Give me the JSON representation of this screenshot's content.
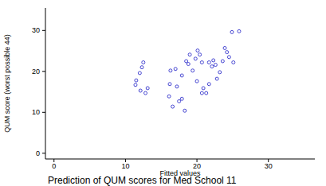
{
  "chart_data": {
    "type": "scatter",
    "title": "Prediction of QUM scores for Med School 11",
    "x_label": "Fitted values",
    "y_label": "QUM score (worst possible 44)",
    "color": "#3333cc",
    "marker": "hollow-circle",
    "x": [
      24.9,
      25.9,
      23.9,
      24.2,
      24.5,
      25.1,
      23.6,
      22.6,
      22.1,
      21.7,
      22.3,
      23.2,
      22.8,
      21.7,
      20.9,
      21.3,
      20.7,
      20.0,
      19.8,
      20.1,
      20.4,
      20.7,
      19.0,
      18.8,
      19.4,
      17.9,
      18.5,
      17.0,
      16.3,
      17.2,
      16.2,
      17.5,
      17.9,
      18.3,
      16.6,
      16.1,
      12.3,
      12.5,
      12.0,
      11.5,
      11.4,
      12.1,
      12.8,
      13.1
    ],
    "values": [
      29.6,
      29.8,
      25.7,
      24.7,
      23.5,
      22.2,
      22.5,
      21.6,
      21.2,
      22.2,
      22.7,
      19.8,
      18.2,
      16.9,
      15.9,
      14.7,
      14.7,
      17.6,
      23.1,
      25.1,
      24.1,
      22.2,
      24.1,
      21.8,
      20.2,
      19.0,
      22.5,
      20.6,
      20.2,
      16.3,
      16.9,
      12.7,
      13.3,
      10.4,
      11.4,
      13.9,
      21.0,
      22.2,
      19.6,
      17.8,
      16.7,
      15.3,
      14.7,
      15.9
    ],
    "xlim": [
      -1.2,
      36.5
    ],
    "ylim": [
      -1.4,
      35.5
    ],
    "xticks": [
      0,
      10,
      20,
      30
    ],
    "yticks": [
      0,
      10,
      20,
      30
    ],
    "grid": false
  }
}
